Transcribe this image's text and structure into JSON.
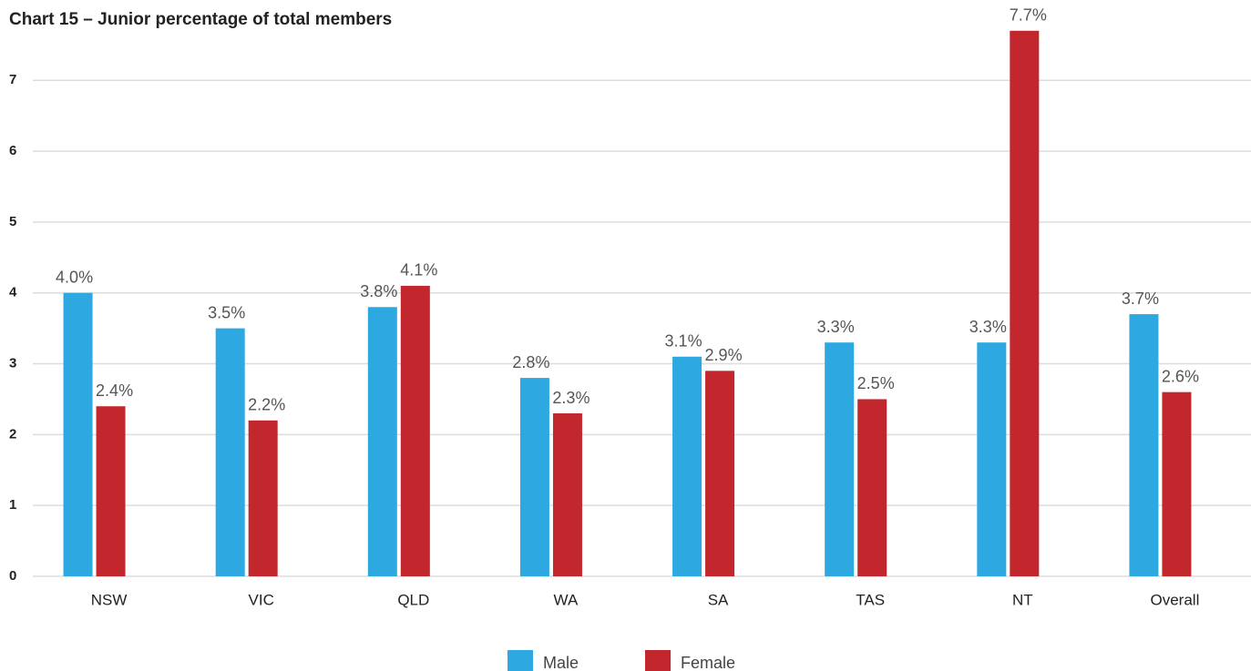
{
  "chart_data": {
    "type": "bar",
    "title": "Chart 15 – Junior percentage of total members",
    "categories": [
      "NSW",
      "VIC",
      "QLD",
      "WA",
      "SA",
      "TAS",
      "NT",
      "Overall"
    ],
    "series": [
      {
        "name": "Male",
        "color": "#2ea8e1",
        "values": [
          4.0,
          3.5,
          3.8,
          2.8,
          3.1,
          3.3,
          3.3,
          3.7
        ],
        "value_labels": [
          "4.0%",
          "3.5%",
          "3.8%",
          "2.8%",
          "3.1%",
          "3.3%",
          "3.3%",
          "3.7%"
        ]
      },
      {
        "name": "Female",
        "color": "#c1272d",
        "values": [
          2.4,
          2.2,
          4.1,
          2.3,
          2.9,
          2.5,
          7.7,
          2.6
        ],
        "value_labels": [
          "2.4%",
          "2.2%",
          "4.1%",
          "2.3%",
          "2.9%",
          "2.5%",
          "7.7%",
          "2.6%"
        ]
      }
    ],
    "ylim": [
      0,
      7.8
    ],
    "yticks": [
      0,
      1,
      2,
      3,
      4,
      5,
      6,
      7
    ],
    "grid": true,
    "legend": "bottom"
  }
}
